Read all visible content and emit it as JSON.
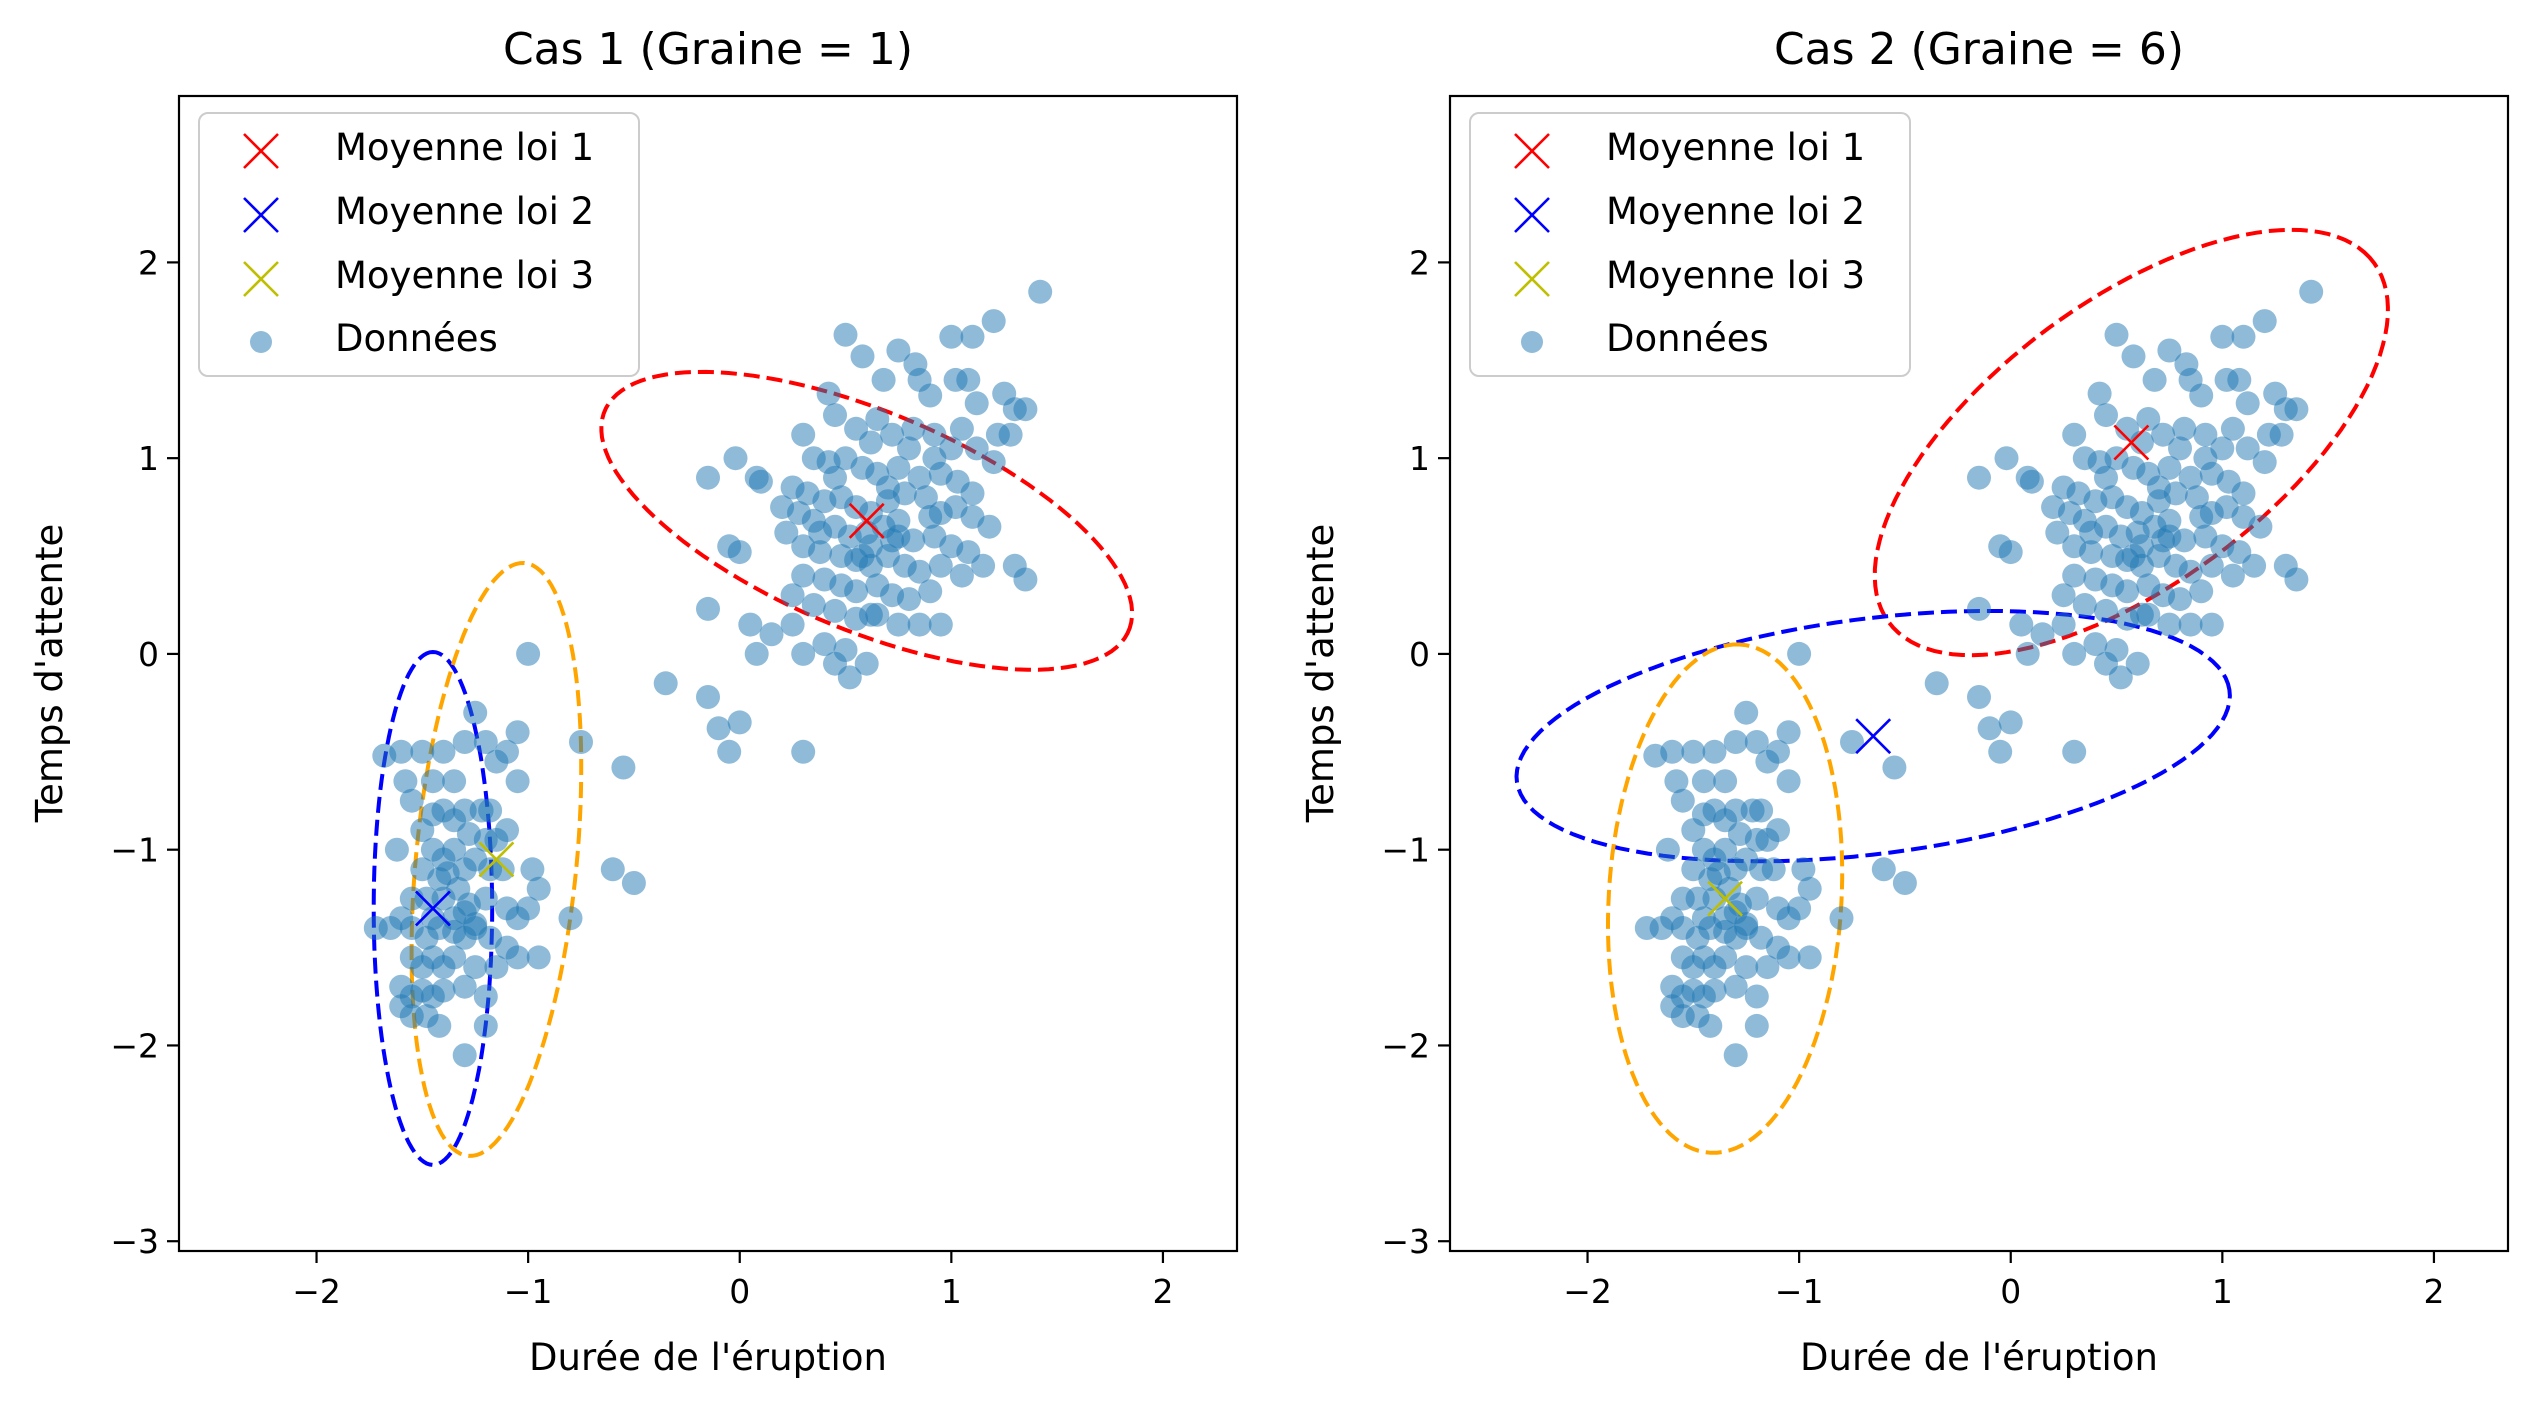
{
  "chart_data": [
    {
      "type": "scatter",
      "title": "Cas 1 (Graine = 1)",
      "xlabel": "Durée de l'éruption",
      "ylabel": "Temps d'attente",
      "xlim": [
        -2.65,
        2.35
      ],
      "ylim": [
        -3.05,
        2.85
      ],
      "xticks": [
        -2,
        -1,
        0,
        1,
        2
      ],
      "xtick_labels": [
        "−2",
        "−1",
        "0",
        "1",
        "2"
      ],
      "yticks": [
        -3,
        -2,
        -1,
        0,
        1,
        2
      ],
      "ytick_labels": [
        "−3",
        "−2",
        "−1",
        "0",
        "1",
        "2"
      ],
      "grid": false,
      "legend_position": "top-left",
      "legend": [
        {
          "label": "Moyenne loi 1",
          "marker": "x",
          "color": "#ff0000"
        },
        {
          "label": "Moyenne loi 2",
          "marker": "x",
          "color": "#0000ff"
        },
        {
          "label": "Moyenne loi 3",
          "marker": "x",
          "color": "#bfbf00"
        },
        {
          "label": "Données",
          "marker": "o",
          "color": "#1f77b4"
        }
      ],
      "means": [
        {
          "name": "Moyenne loi 1",
          "x": 0.6,
          "y": 0.68,
          "color": "#ff0000"
        },
        {
          "name": "Moyenne loi 2",
          "x": -1.45,
          "y": -1.3,
          "color": "#0000ff"
        },
        {
          "name": "Moyenne loi 3",
          "x": -1.15,
          "y": -1.05,
          "color": "#bfbf00"
        }
      ],
      "ellipses": [
        {
          "cx": 0.6,
          "cy": 0.68,
          "rx": 1.36,
          "ry": 0.55,
          "angle_deg": -25,
          "color": "#ff0000"
        },
        {
          "cx": -1.45,
          "cy": -1.3,
          "rx": 1.31,
          "ry": 0.28,
          "angle_deg": 90,
          "color": "#0000ff"
        },
        {
          "cx": -1.15,
          "cy": -1.05,
          "rx": 1.52,
          "ry": 0.38,
          "angle_deg": 85,
          "color": "#ffa500"
        }
      ],
      "data_points_color": "#1f77b4"
    },
    {
      "type": "scatter",
      "title": "Cas 2 (Graine = 6)",
      "xlabel": "Durée de l'éruption",
      "ylabel": "Temps d'attente",
      "xlim": [
        -2.65,
        2.35
      ],
      "ylim": [
        -3.05,
        2.85
      ],
      "xticks": [
        -2,
        -1,
        0,
        1,
        2
      ],
      "xtick_labels": [
        "−2",
        "−1",
        "0",
        "1",
        "2"
      ],
      "yticks": [
        -3,
        -2,
        -1,
        0,
        1,
        2
      ],
      "ytick_labels": [
        "−3",
        "−2",
        "−1",
        "0",
        "1",
        "2"
      ],
      "grid": false,
      "legend_position": "top-left",
      "legend": [
        {
          "label": "Moyenne loi 1",
          "marker": "x",
          "color": "#ff0000"
        },
        {
          "label": "Moyenne loi 2",
          "marker": "x",
          "color": "#0000ff"
        },
        {
          "label": "Moyenne loi 3",
          "marker": "x",
          "color": "#bfbf00"
        },
        {
          "label": "Données",
          "marker": "o",
          "color": "#1f77b4"
        }
      ],
      "means": [
        {
          "name": "Moyenne loi 1",
          "x": 0.57,
          "y": 1.08,
          "color": "#ff0000"
        },
        {
          "name": "Moyenne loi 2",
          "x": -0.65,
          "y": -0.42,
          "color": "#0000ff"
        },
        {
          "name": "Moyenne loi 3",
          "x": -1.35,
          "y": -1.25,
          "color": "#bfbf00"
        }
      ],
      "ellipses": [
        {
          "cx": 0.57,
          "cy": 1.08,
          "rx": 1.47,
          "ry": 0.7,
          "angle_deg": 40,
          "color": "#ff0000"
        },
        {
          "cx": -0.65,
          "cy": -0.42,
          "rx": 1.7,
          "ry": 0.6,
          "angle_deg": 8,
          "color": "#0000ff"
        },
        {
          "cx": -1.35,
          "cy": -1.25,
          "rx": 1.3,
          "ry": 0.55,
          "angle_deg": 87,
          "color": "#ffa500"
        }
      ],
      "data_points_color": "#1f77b4"
    }
  ],
  "data_points": [
    [
      0.5,
      1.63
    ],
    [
      0.75,
      1.55
    ],
    [
      0.83,
      1.48
    ],
    [
      1.0,
      1.62
    ],
    [
      1.1,
      1.62
    ],
    [
      1.2,
      1.7
    ],
    [
      1.42,
      1.85
    ],
    [
      0.58,
      1.52
    ],
    [
      0.68,
      1.4
    ],
    [
      0.85,
      1.4
    ],
    [
      0.9,
      1.32
    ],
    [
      1.02,
      1.4
    ],
    [
      1.08,
      1.4
    ],
    [
      1.12,
      1.28
    ],
    [
      1.25,
      1.33
    ],
    [
      1.3,
      1.25
    ],
    [
      1.35,
      1.25
    ],
    [
      1.28,
      1.12
    ],
    [
      1.22,
      1.12
    ],
    [
      0.42,
      1.33
    ],
    [
      0.45,
      1.22
    ],
    [
      0.55,
      1.15
    ],
    [
      0.62,
      1.08
    ],
    [
      0.72,
      1.12
    ],
    [
      0.82,
      1.15
    ],
    [
      0.92,
      1.12
    ],
    [
      1.05,
      1.15
    ],
    [
      1.12,
      1.05
    ],
    [
      1.2,
      0.98
    ],
    [
      0.3,
      1.12
    ],
    [
      0.35,
      1.0
    ],
    [
      0.42,
      0.98
    ],
    [
      0.5,
      1.0
    ],
    [
      0.58,
      0.95
    ],
    [
      0.65,
      0.92
    ],
    [
      0.75,
      0.95
    ],
    [
      0.85,
      0.9
    ],
    [
      0.95,
      0.92
    ],
    [
      1.03,
      0.88
    ],
    [
      1.1,
      0.82
    ],
    [
      0.08,
      0.9
    ],
    [
      0.1,
      0.88
    ],
    [
      0.25,
      0.85
    ],
    [
      0.32,
      0.82
    ],
    [
      0.4,
      0.78
    ],
    [
      0.48,
      0.8
    ],
    [
      0.55,
      0.75
    ],
    [
      0.62,
      0.72
    ],
    [
      0.7,
      0.78
    ],
    [
      0.78,
      0.82
    ],
    [
      0.88,
      0.8
    ],
    [
      0.95,
      0.72
    ],
    [
      1.02,
      0.75
    ],
    [
      1.1,
      0.7
    ],
    [
      1.18,
      0.65
    ],
    [
      0.2,
      0.75
    ],
    [
      0.28,
      0.72
    ],
    [
      0.35,
      0.68
    ],
    [
      0.45,
      0.65
    ],
    [
      0.52,
      0.6
    ],
    [
      0.6,
      0.62
    ],
    [
      0.68,
      0.65
    ],
    [
      0.75,
      0.6
    ],
    [
      0.82,
      0.58
    ],
    [
      0.92,
      0.6
    ],
    [
      1.0,
      0.55
    ],
    [
      1.08,
      0.52
    ],
    [
      0.22,
      0.62
    ],
    [
      0.3,
      0.55
    ],
    [
      0.38,
      0.52
    ],
    [
      0.48,
      0.5
    ],
    [
      0.55,
      0.48
    ],
    [
      0.62,
      0.45
    ],
    [
      0.7,
      0.5
    ],
    [
      0.78,
      0.45
    ],
    [
      0.85,
      0.42
    ],
    [
      0.95,
      0.45
    ],
    [
      1.05,
      0.4
    ],
    [
      1.15,
      0.45
    ],
    [
      0.3,
      0.4
    ],
    [
      0.4,
      0.38
    ],
    [
      0.48,
      0.35
    ],
    [
      0.55,
      0.32
    ],
    [
      0.65,
      0.35
    ],
    [
      0.72,
      0.3
    ],
    [
      0.8,
      0.28
    ],
    [
      0.9,
      0.32
    ],
    [
      0.25,
      0.3
    ],
    [
      0.35,
      0.25
    ],
    [
      0.45,
      0.22
    ],
    [
      0.55,
      0.18
    ],
    [
      0.62,
      0.2
    ],
    [
      0.75,
      0.15
    ],
    [
      0.85,
      0.15
    ],
    [
      0.95,
      0.15
    ],
    [
      0.25,
      0.15
    ],
    [
      0.4,
      0.05
    ],
    [
      0.5,
      0.02
    ],
    [
      0.6,
      -0.05
    ],
    [
      0.45,
      -0.05
    ],
    [
      0.52,
      -0.12
    ],
    [
      0.3,
      0.0
    ],
    [
      0.65,
      0.2
    ],
    [
      0.72,
      0.58
    ],
    [
      0.7,
      0.85
    ],
    [
      0.62,
      0.55
    ],
    [
      0.58,
      0.5
    ],
    [
      1.3,
      0.45
    ],
    [
      1.35,
      0.38
    ],
    [
      0.92,
      1.0
    ],
    [
      1.0,
      1.05
    ],
    [
      0.8,
      1.05
    ],
    [
      0.65,
      1.2
    ],
    [
      0.75,
      0.68
    ],
    [
      0.9,
      0.7
    ],
    [
      0.45,
      0.9
    ],
    [
      0.38,
      0.62
    ],
    [
      -0.15,
      0.9
    ],
    [
      -0.02,
      1.0
    ],
    [
      -0.05,
      0.55
    ],
    [
      0.0,
      0.52
    ],
    [
      -0.15,
      0.23
    ],
    [
      0.05,
      0.15
    ],
    [
      0.15,
      0.1
    ],
    [
      0.08,
      0.0
    ],
    [
      -0.35,
      -0.15
    ],
    [
      -0.15,
      -0.22
    ],
    [
      -0.1,
      -0.38
    ],
    [
      0.0,
      -0.35
    ],
    [
      -0.05,
      -0.5
    ],
    [
      0.3,
      -0.5
    ],
    [
      -0.55,
      -0.58
    ],
    [
      -0.6,
      -1.1
    ],
    [
      -0.5,
      -1.17
    ],
    [
      -0.75,
      -0.45
    ],
    [
      -0.8,
      -1.35
    ],
    [
      -0.98,
      -1.1
    ],
    [
      -0.95,
      -1.2
    ],
    [
      -1.0,
      0.0
    ],
    [
      -1.05,
      -0.4
    ],
    [
      -1.1,
      -0.5
    ],
    [
      -1.05,
      -0.65
    ],
    [
      -1.15,
      -0.55
    ],
    [
      -1.2,
      -0.45
    ],
    [
      -1.25,
      -0.3
    ],
    [
      -1.3,
      -0.45
    ],
    [
      -1.35,
      -0.65
    ],
    [
      -1.4,
      -0.5
    ],
    [
      -1.45,
      -0.65
    ],
    [
      -1.5,
      -0.5
    ],
    [
      -1.6,
      -0.5
    ],
    [
      -1.55,
      -0.75
    ],
    [
      -1.45,
      -0.82
    ],
    [
      -1.4,
      -0.8
    ],
    [
      -1.35,
      -0.85
    ],
    [
      -1.3,
      -0.8
    ],
    [
      -1.22,
      -0.8
    ],
    [
      -1.18,
      -0.8
    ],
    [
      -1.1,
      -0.9
    ],
    [
      -1.5,
      -0.9
    ],
    [
      -1.45,
      -1.0
    ],
    [
      -1.4,
      -1.05
    ],
    [
      -1.35,
      -1.0
    ],
    [
      -1.28,
      -0.92
    ],
    [
      -1.2,
      -0.95
    ],
    [
      -1.15,
      -0.95
    ],
    [
      -1.5,
      -1.1
    ],
    [
      -1.42,
      -1.15
    ],
    [
      -1.38,
      -1.12
    ],
    [
      -1.3,
      -1.1
    ],
    [
      -1.25,
      -1.05
    ],
    [
      -1.18,
      -1.1
    ],
    [
      -1.12,
      -1.1
    ],
    [
      -1.55,
      -1.25
    ],
    [
      -1.48,
      -1.25
    ],
    [
      -1.4,
      -1.25
    ],
    [
      -1.33,
      -1.2
    ],
    [
      -1.28,
      -1.28
    ],
    [
      -1.2,
      -1.25
    ],
    [
      -1.1,
      -1.3
    ],
    [
      -1.05,
      -1.35
    ],
    [
      -1.0,
      -1.3
    ],
    [
      -1.55,
      -1.4
    ],
    [
      -1.48,
      -1.45
    ],
    [
      -1.42,
      -1.4
    ],
    [
      -1.35,
      -1.42
    ],
    [
      -1.3,
      -1.45
    ],
    [
      -1.25,
      -1.4
    ],
    [
      -1.18,
      -1.45
    ],
    [
      -1.1,
      -1.5
    ],
    [
      -0.95,
      -1.55
    ],
    [
      -1.55,
      -1.55
    ],
    [
      -1.5,
      -1.6
    ],
    [
      -1.45,
      -1.55
    ],
    [
      -1.4,
      -1.6
    ],
    [
      -1.35,
      -1.55
    ],
    [
      -1.25,
      -1.6
    ],
    [
      -1.15,
      -1.6
    ],
    [
      -1.05,
      -1.55
    ],
    [
      -1.6,
      -1.7
    ],
    [
      -1.55,
      -1.75
    ],
    [
      -1.5,
      -1.72
    ],
    [
      -1.45,
      -1.75
    ],
    [
      -1.4,
      -1.72
    ],
    [
      -1.3,
      -1.7
    ],
    [
      -1.6,
      -1.8
    ],
    [
      -1.55,
      -1.85
    ],
    [
      -1.48,
      -1.85
    ],
    [
      -1.42,
      -1.9
    ],
    [
      -1.2,
      -1.75
    ],
    [
      -1.2,
      -1.9
    ],
    [
      -1.6,
      -1.35
    ],
    [
      -1.65,
      -1.4
    ],
    [
      -1.3,
      -2.05
    ],
    [
      -1.72,
      -1.4
    ],
    [
      -1.62,
      -1.0
    ],
    [
      -1.58,
      -0.65
    ],
    [
      -1.68,
      -0.52
    ],
    [
      -1.3,
      -1.32
    ],
    [
      -1.25,
      -1.38
    ],
    [
      -1.35,
      -1.35
    ],
    [
      -1.45,
      -1.35
    ]
  ]
}
